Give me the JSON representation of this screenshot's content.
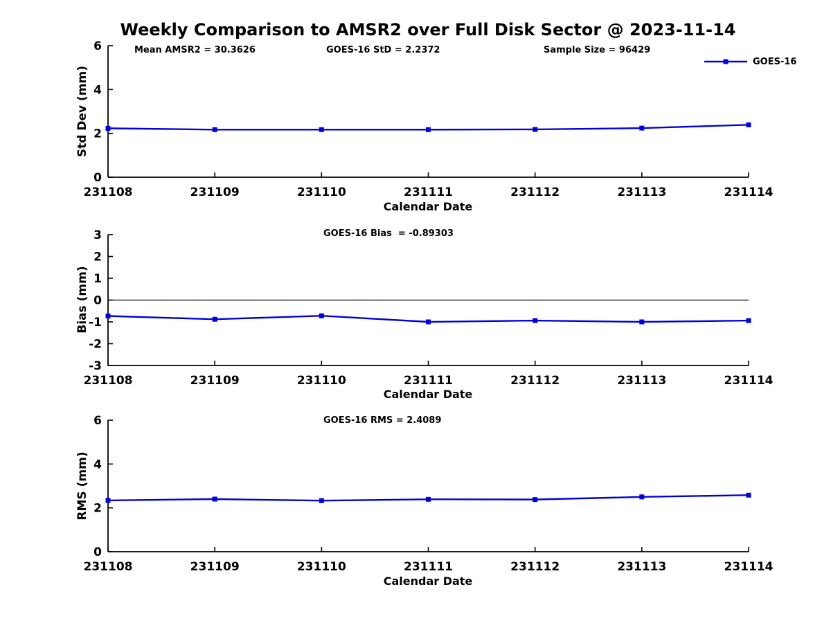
{
  "title": "Weekly Comparison to AMSR2 over Full Disk Sector @ 2023-11-14",
  "colors": {
    "series": "#0000dd",
    "axis": "#000000",
    "background": "#ffffff"
  },
  "legend": {
    "label": "GOES-16"
  },
  "chart_data": [
    {
      "type": "line",
      "name": "std-dev",
      "ylabel": "Std Dev (mm)",
      "xlabel": "Calendar Date",
      "x": [
        "231108",
        "231109",
        "231110",
        "231111",
        "231112",
        "231113",
        "231114"
      ],
      "series": [
        {
          "name": "GOES-16",
          "values": [
            2.23,
            2.17,
            2.17,
            2.17,
            2.18,
            2.24,
            2.39
          ]
        }
      ],
      "ylim": [
        0,
        6
      ],
      "yticks": [
        0,
        2,
        4,
        6
      ],
      "grid": false,
      "legend_position": "upper-right-outside",
      "annotations": [
        "Mean AMSR2 = 30.3626",
        "GOES-16 StD = 2.2372",
        "Sample Size = 96429"
      ]
    },
    {
      "type": "line",
      "name": "bias",
      "ylabel": "Bias (mm)",
      "xlabel": "Calendar Date",
      "x": [
        "231108",
        "231109",
        "231110",
        "231111",
        "231112",
        "231113",
        "231114"
      ],
      "series": [
        {
          "name": "GOES-16",
          "values": [
            -0.73,
            -0.88,
            -0.72,
            -1.0,
            -0.94,
            -1.0,
            -0.94
          ]
        }
      ],
      "ylim": [
        -3,
        3
      ],
      "yticks": [
        -3,
        -2,
        -1,
        0,
        1,
        2,
        3
      ],
      "zero_line": true,
      "grid": false,
      "annotations": [
        "GOES-16 Bias  = -0.89303"
      ]
    },
    {
      "type": "line",
      "name": "rms",
      "ylabel": "RMS (mm)",
      "xlabel": "Calendar Date",
      "x": [
        "231108",
        "231109",
        "231110",
        "231111",
        "231112",
        "231113",
        "231114"
      ],
      "series": [
        {
          "name": "GOES-16",
          "values": [
            2.34,
            2.4,
            2.33,
            2.39,
            2.38,
            2.5,
            2.58
          ]
        }
      ],
      "ylim": [
        0,
        6
      ],
      "yticks": [
        0,
        2,
        4,
        6
      ],
      "grid": false,
      "annotations": [
        "GOES-16 RMS = 2.4089"
      ]
    }
  ]
}
